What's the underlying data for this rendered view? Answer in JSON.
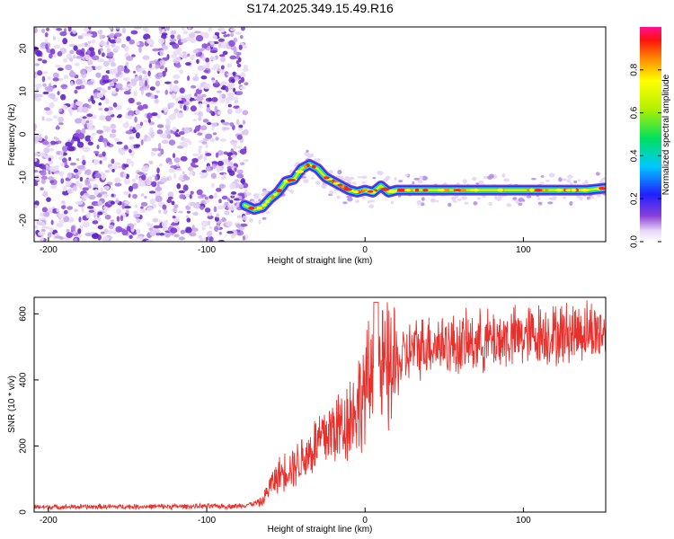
{
  "figure_title": "S174.2025.349.15.49.R16",
  "chart_data": [
    {
      "type": "heatmap",
      "title": "S174.2025.349.15.49.R16",
      "xlabel": "Height of straight line (km)",
      "ylabel": "Frequency (Hz)",
      "xlim": [
        -209,
        152
      ],
      "ylim": [
        -25,
        25
      ],
      "xticks": [
        -200,
        -100,
        0,
        100
      ],
      "xtick_labels": [
        "-200",
        "-100",
        "0",
        "100"
      ],
      "yticks": [
        -20,
        -10,
        0,
        10,
        20
      ],
      "ytick_labels": [
        "-20",
        "-10",
        "0",
        "10",
        "20"
      ],
      "noise_region_x": [
        -209,
        -75
      ],
      "ridge": {
        "x": [
          -76,
          -70,
          -65,
          -60,
          -55,
          -50,
          -45,
          -40,
          -35,
          -30,
          -25,
          -20,
          -15,
          -10,
          -5,
          0,
          5,
          10,
          15,
          20,
          30,
          50,
          80,
          100,
          120,
          140,
          152
        ],
        "y": [
          -16.5,
          -17.5,
          -17,
          -15,
          -13.5,
          -11,
          -10.5,
          -8,
          -7,
          -8,
          -10,
          -11,
          -12,
          -13,
          -13.5,
          -13,
          -13.5,
          -12,
          -13.5,
          -13,
          -13,
          -13,
          -13,
          -13,
          -13,
          -13,
          -12.5
        ]
      },
      "colorbar": {
        "label": "Normalized spectral amplitude",
        "range": [
          0,
          1
        ],
        "ticks": [
          0.0,
          0.2,
          0.4,
          0.6,
          0.8
        ],
        "tick_labels": [
          "0.0",
          "0.2",
          "0.4",
          "0.6",
          "0.8"
        ]
      }
    },
    {
      "type": "line",
      "xlabel": "Height of straight line (km)",
      "ylabel": "SNR (10 * v/v)",
      "xlim": [
        -209,
        152
      ],
      "ylim": [
        0,
        650
      ],
      "xticks": [
        -200,
        -100,
        0,
        100
      ],
      "xtick_labels": [
        "-200",
        "-100",
        "0",
        "100"
      ],
      "yticks": [
        0,
        200,
        400,
        600
      ],
      "ytick_labels": [
        "0",
        "200",
        "400",
        "600"
      ],
      "series": [
        {
          "name": "SNR",
          "color": "#e8302c",
          "x": [
            -209,
            -80,
            -65,
            -60,
            -55,
            -50,
            -45,
            -40,
            -35,
            -30,
            -25,
            -20,
            -15,
            -10,
            -5,
            0,
            5,
            10,
            15,
            20,
            25,
            30,
            40,
            50,
            60,
            70,
            80,
            90,
            100,
            110,
            120,
            130,
            140,
            152
          ],
          "y": [
            15,
            18,
            30,
            80,
            110,
            130,
            140,
            160,
            180,
            210,
            230,
            250,
            260,
            290,
            320,
            370,
            410,
            420,
            430,
            440,
            470,
            490,
            510,
            510,
            505,
            515,
            520,
            525,
            530,
            540,
            535,
            545,
            550,
            545
          ]
        }
      ]
    }
  ]
}
